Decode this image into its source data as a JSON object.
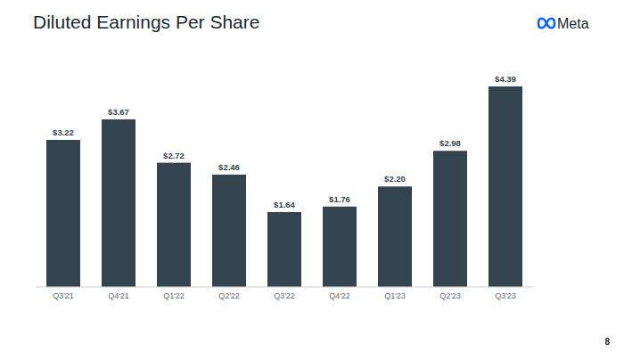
{
  "chart_data": {
    "type": "bar",
    "title": "Diluted Earnings Per Share",
    "categories": [
      "Q3'21",
      "Q4'21",
      "Q1'22",
      "Q2'22",
      "Q3'22",
      "Q4'22",
      "Q1'23",
      "Q2'23",
      "Q3'23"
    ],
    "values": [
      3.22,
      3.67,
      2.72,
      2.46,
      1.64,
      1.76,
      2.2,
      2.98,
      4.39
    ],
    "value_labels": [
      "$3.22",
      "$3.67",
      "$2.72",
      "$2.46",
      "$1.64",
      "$1.76",
      "$2.20",
      "$2.98",
      "$4.39"
    ],
    "color": "#34444f",
    "ylim": [
      0,
      4.5
    ],
    "data_labels": true,
    "tick_labels": "x",
    "grid": false
  },
  "brand": "Meta",
  "page_number": 8
}
